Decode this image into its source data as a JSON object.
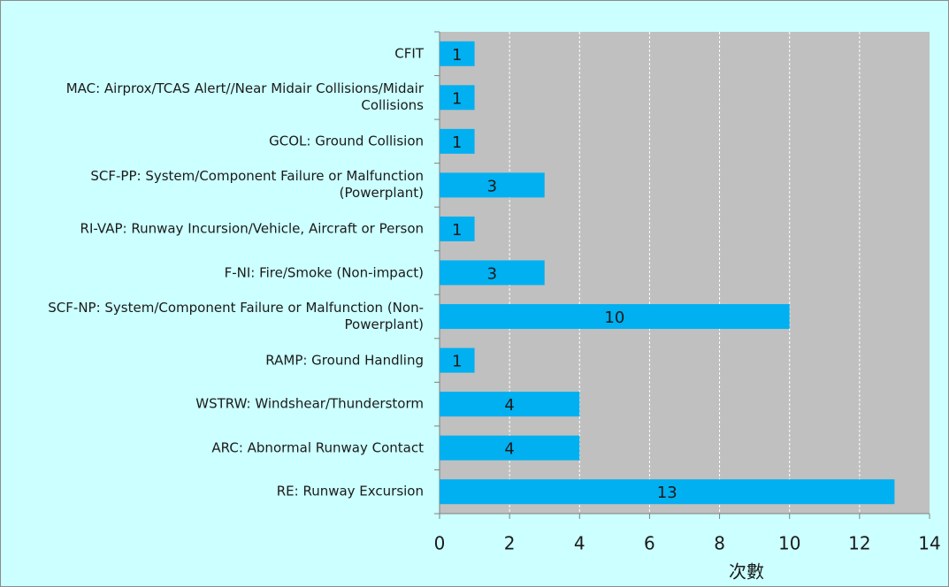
{
  "chart_data": {
    "type": "bar",
    "orientation": "horizontal",
    "categories": [
      "CFIT",
      "MAC: Airprox/TCAS Alert//Near Midair Collisions/Midair Collisions",
      "GCOL: Ground Collision",
      "SCF-PP: System/Component Failure or Malfunction (Powerplant)",
      "RI-VAP: Runway Incursion/Vehicle, Aircraft or Person",
      "F-NI: Fire/Smoke (Non-impact)",
      "SCF-NP: System/Component Failure or Malfunction (Non-Powerplant)",
      "RAMP: Ground Handling",
      "WSTRW: Windshear/Thunderstorm",
      "ARC: Abnormal Runway Contact",
      "RE: Runway Excursion"
    ],
    "values": [
      1,
      1,
      1,
      3,
      1,
      3,
      10,
      1,
      4,
      4,
      13
    ],
    "color": "#00b0f0",
    "x_label": "次數",
    "xlim": [
      0,
      14
    ],
    "xticks": [
      0,
      2,
      4,
      6,
      8,
      10,
      12,
      14
    ],
    "grid": true
  }
}
